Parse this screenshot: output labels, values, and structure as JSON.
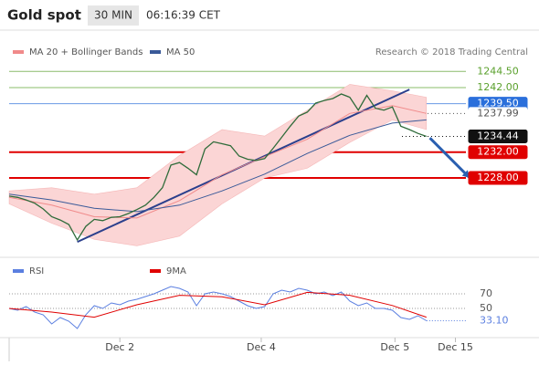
{
  "header": {
    "title": "Gold spot",
    "interval": "30 MIN",
    "time": "06:16:39 CET"
  },
  "chart_data": [
    {
      "type": "line",
      "note": "Research © 2018 Trading Central",
      "x": [
        0,
        1,
        2,
        3,
        4,
        5,
        6,
        7,
        8,
        9,
        10,
        11,
        12,
        13,
        14,
        15,
        16,
        17,
        18,
        19,
        20,
        21,
        22,
        23,
        24,
        25,
        26,
        27,
        28,
        29,
        30,
        31,
        32,
        33,
        34,
        35,
        36,
        37,
        38,
        39,
        40,
        41,
        42,
        43,
        44,
        45,
        46,
        47,
        48,
        49
      ],
      "values": [
        1225.2,
        1225.0,
        1224.6,
        1224.1,
        1223.2,
        1222.0,
        1221.5,
        1220.8,
        1218.4,
        1220.5,
        1221.6,
        1221.4,
        1221.9,
        1222.0,
        1222.5,
        1223.1,
        1223.8,
        1225.0,
        1226.5,
        1230.0,
        1230.4,
        1229.5,
        1228.5,
        1232.5,
        1233.6,
        1233.3,
        1233.0,
        1231.4,
        1230.9,
        1230.7,
        1231.0,
        1232.6,
        1234.3,
        1236.0,
        1237.6,
        1238.2,
        1239.6,
        1240.0,
        1240.3,
        1241.0,
        1240.5,
        1238.5,
        1240.8,
        1238.8,
        1238.5,
        1239.0,
        1236.0,
        1235.5,
        1234.9,
        1234.44
      ],
      "color": "#2f6b3a",
      "series": [
        {
          "name": "MA 20 + Bollinger Bands",
          "color": "#f08a8a",
          "band_color": "#fbd5d5",
          "x": [
            0,
            5,
            10,
            15,
            20,
            25,
            30,
            35,
            40,
            45,
            49
          ],
          "values": [
            1225.0,
            1223.8,
            1222.0,
            1221.8,
            1224.5,
            1228.5,
            1231.3,
            1234.0,
            1238.0,
            1239.2,
            1238.0
          ],
          "upper": [
            1226.0,
            1226.5,
            1225.5,
            1226.5,
            1231.5,
            1235.5,
            1234.5,
            1238.5,
            1242.5,
            1241.5,
            1240.5
          ],
          "lower": [
            1224.0,
            1221.0,
            1218.5,
            1217.5,
            1219.0,
            1224.0,
            1228.0,
            1229.5,
            1233.5,
            1237.0,
            1235.5
          ]
        },
        {
          "name": "MA 50",
          "color": "#3a5a99",
          "x": [
            0,
            5,
            10,
            15,
            20,
            25,
            30,
            35,
            40,
            45,
            49
          ],
          "values": [
            1225.5,
            1224.6,
            1223.3,
            1222.8,
            1223.8,
            1226.0,
            1228.6,
            1231.8,
            1234.6,
            1236.5,
            1237.0
          ]
        }
      ],
      "levels": [
        {
          "value": 1244.5,
          "label": "1244.50",
          "color": "#5aa02c",
          "filled": false,
          "line": "solid"
        },
        {
          "value": 1242.0,
          "label": "1242.00",
          "color": "#5aa02c",
          "filled": false,
          "line": "solid"
        },
        {
          "value": 1239.5,
          "label": "1239.50",
          "color": "#2a6fdb",
          "filled": true,
          "line": "solid"
        },
        {
          "value": 1237.99,
          "label": "1237.99",
          "color": "#555555",
          "filled": false,
          "line": "dotted"
        },
        {
          "value": 1234.44,
          "label": "1234.44",
          "color": "#111111",
          "filled": true,
          "line": "dotted"
        },
        {
          "value": 1232.0,
          "label": "1232.00",
          "color": "#e00000",
          "filled": true,
          "line": "solid"
        },
        {
          "value": 1228.0,
          "label": "1228.00",
          "color": "#e00000",
          "filled": true,
          "line": "solid"
        }
      ],
      "trendline": {
        "x": [
          8,
          47
        ],
        "values": [
          1218.1,
          1241.7
        ],
        "color": "#2b3f8c"
      },
      "arrow": {
        "x": [
          49.4,
          54.1
        ],
        "values": [
          1234.2,
          1228.0
        ],
        "color": "#2a5fb0"
      },
      "xlim": [
        0,
        62
      ],
      "ylim": [
        1216,
        1249.2
      ]
    },
    {
      "type": "line",
      "x": [
        0,
        1,
        2,
        3,
        4,
        5,
        6,
        7,
        8,
        9,
        10,
        11,
        12,
        13,
        14,
        15,
        16,
        17,
        18,
        19,
        20,
        21,
        22,
        23,
        24,
        25,
        26,
        27,
        28,
        29,
        30,
        31,
        32,
        33,
        34,
        35,
        36,
        37,
        38,
        39,
        40,
        41,
        42,
        43,
        44,
        45,
        46,
        47,
        48,
        49
      ],
      "series": [
        {
          "name": "RSI",
          "color": "#5b7fe0",
          "values": [
            50,
            47.5,
            52.5,
            45,
            41.25,
            28.75,
            37.5,
            32.5,
            22.5,
            41.25,
            53.75,
            50,
            57.5,
            55,
            60,
            62.5,
            66.25,
            70,
            75,
            80,
            77.5,
            72.5,
            53.75,
            70,
            72.5,
            70,
            66.25,
            60,
            53.75,
            50,
            52.5,
            70,
            75,
            72.5,
            77.5,
            75,
            70,
            72.5,
            67.5,
            72.5,
            60,
            53.75,
            57.5,
            50,
            50,
            47.5,
            37.5,
            35,
            40,
            33.1
          ],
          "value_labels": {
            "49": "33.10"
          }
        },
        {
          "name": "9MA",
          "color": "#e00000",
          "x": [
            0,
            5,
            10,
            15,
            20,
            25,
            30,
            35,
            40,
            45,
            49
          ],
          "values": [
            50,
            45,
            38,
            55,
            68,
            66,
            55,
            72,
            68,
            54,
            38
          ]
        }
      ],
      "xlim": [
        0,
        62
      ],
      "ylim": [
        10,
        90
      ],
      "yticks": [
        70,
        50
      ],
      "xticks": [
        {
          "value": 13,
          "label": "Dec 2"
        },
        {
          "value": 29.6,
          "label": "Dec 4"
        },
        {
          "value": 45.3,
          "label": "Dec 5"
        },
        {
          "value": 52.4,
          "label": "Dec 15"
        }
      ]
    }
  ]
}
